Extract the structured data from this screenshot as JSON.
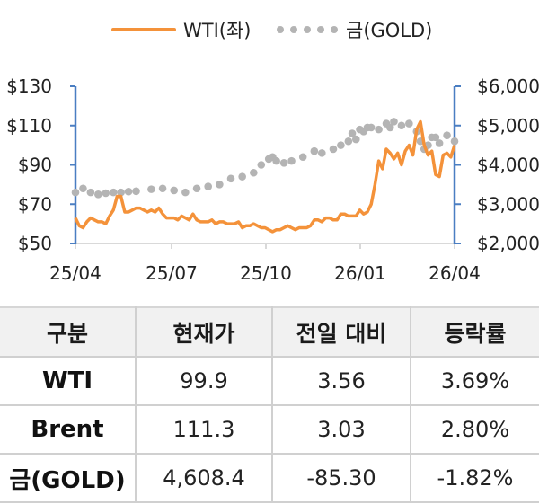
{
  "legend": {
    "series": [
      {
        "label": "WTI(좌)",
        "color": "#f4923a",
        "style": "line"
      },
      {
        "label": "금(GOLD)",
        "color": "#b4b4b4",
        "style": "dots"
      }
    ]
  },
  "axes": {
    "left_ticks": [
      "$130",
      "$110",
      "$90",
      "$70",
      "$50"
    ],
    "right_ticks": [
      "$6,000",
      "$5,000",
      "$4,000",
      "$3,000",
      "$2,000"
    ],
    "x_ticks": [
      "25/04",
      "25/07",
      "25/10",
      "26/01",
      "26/04"
    ]
  },
  "chart_data": {
    "type": "line",
    "title": "",
    "xlabel": "",
    "ylabel": "",
    "x_ticks": [
      "25/04",
      "25/07",
      "25/10",
      "26/01",
      "26/04"
    ],
    "ylim_left": [
      50,
      130
    ],
    "ylim_right": [
      2000,
      6000
    ],
    "y_ticks_left": [
      50,
      70,
      90,
      110,
      130
    ],
    "y_ticks_right": [
      2000,
      3000,
      4000,
      5000,
      6000
    ],
    "grid": false,
    "legend_position": "top",
    "series": [
      {
        "name": "WTI(좌)",
        "axis": "left",
        "color": "#f4923a",
        "x_frac": [
          0.0,
          0.01,
          0.02,
          0.03,
          0.04,
          0.05,
          0.06,
          0.07,
          0.08,
          0.09,
          0.1,
          0.11,
          0.12,
          0.13,
          0.14,
          0.15,
          0.16,
          0.17,
          0.18,
          0.19,
          0.2,
          0.21,
          0.22,
          0.23,
          0.24,
          0.25,
          0.26,
          0.27,
          0.28,
          0.29,
          0.3,
          0.31,
          0.32,
          0.33,
          0.34,
          0.35,
          0.36,
          0.37,
          0.38,
          0.39,
          0.4,
          0.41,
          0.42,
          0.43,
          0.44,
          0.45,
          0.46,
          0.47,
          0.48,
          0.49,
          0.5,
          0.51,
          0.52,
          0.53,
          0.54,
          0.55,
          0.56,
          0.57,
          0.58,
          0.59,
          0.6,
          0.61,
          0.62,
          0.63,
          0.64,
          0.65,
          0.66,
          0.67,
          0.68,
          0.69,
          0.7,
          0.71,
          0.72,
          0.73,
          0.74,
          0.75,
          0.76,
          0.77,
          0.78,
          0.79,
          0.8,
          0.81,
          0.82,
          0.83,
          0.84,
          0.85,
          0.86,
          0.87,
          0.88,
          0.89,
          0.9,
          0.91,
          0.92,
          0.93,
          0.94,
          0.95,
          0.96,
          0.97,
          0.98,
          0.99,
          1.0
        ],
        "values": [
          63,
          59,
          58,
          61,
          63,
          62,
          61,
          61,
          60,
          64,
          67,
          74,
          74,
          66,
          66,
          67,
          68,
          68,
          67,
          66,
          67,
          66,
          68,
          65,
          63,
          63,
          63,
          62,
          64,
          63,
          62,
          65,
          62,
          61,
          61,
          61,
          62,
          60,
          61,
          61,
          60,
          60,
          60,
          61,
          58,
          59,
          59,
          60,
          59,
          58,
          58,
          57,
          56,
          57,
          57,
          58,
          59,
          58,
          57,
          58,
          58,
          58,
          59,
          62,
          62,
          61,
          63,
          63,
          62,
          62,
          65,
          65,
          64,
          64,
          64,
          67,
          65,
          66,
          70,
          80,
          92,
          88,
          98,
          96,
          93,
          96,
          90,
          97,
          100,
          95,
          108,
          112,
          100,
          95,
          97,
          85,
          84,
          95,
          96,
          94,
          100
        ]
      },
      {
        "name": "금(GOLD)",
        "axis": "right",
        "color": "#b4b4b4",
        "x_frac": [
          0.0,
          0.02,
          0.04,
          0.06,
          0.08,
          0.1,
          0.12,
          0.14,
          0.16,
          0.2,
          0.23,
          0.26,
          0.29,
          0.32,
          0.35,
          0.38,
          0.41,
          0.44,
          0.47,
          0.49,
          0.51,
          0.52,
          0.53,
          0.55,
          0.57,
          0.6,
          0.63,
          0.65,
          0.68,
          0.7,
          0.72,
          0.73,
          0.74,
          0.75,
          0.76,
          0.77,
          0.78,
          0.8,
          0.82,
          0.83,
          0.84,
          0.86,
          0.88,
          0.9,
          0.91,
          0.92,
          0.93,
          0.94,
          0.95,
          0.96,
          0.98,
          1.0
        ],
        "values": [
          3300,
          3400,
          3300,
          3250,
          3280,
          3300,
          3300,
          3320,
          3330,
          3380,
          3400,
          3350,
          3300,
          3400,
          3450,
          3500,
          3650,
          3700,
          3800,
          4000,
          4150,
          4200,
          4100,
          4050,
          4100,
          4200,
          4350,
          4300,
          4400,
          4500,
          4600,
          4800,
          4650,
          4900,
          4850,
          4950,
          4950,
          4900,
          5050,
          4950,
          5100,
          5000,
          5050,
          4850,
          4600,
          4400,
          4500,
          4700,
          4700,
          4550,
          4750,
          4600
        ]
      }
    ]
  },
  "table": {
    "headers": [
      "구분",
      "현재가",
      "전일 대비",
      "등락률"
    ],
    "rows": [
      {
        "name": "WTI",
        "price": "99.9",
        "change": "3.56",
        "rate": "3.69%"
      },
      {
        "name": "Brent",
        "price": "111.3",
        "change": "3.03",
        "rate": "2.80%"
      },
      {
        "name": "금(GOLD)",
        "price": "4,608.4",
        "change": "-85.30",
        "rate": "-1.82%"
      }
    ]
  }
}
